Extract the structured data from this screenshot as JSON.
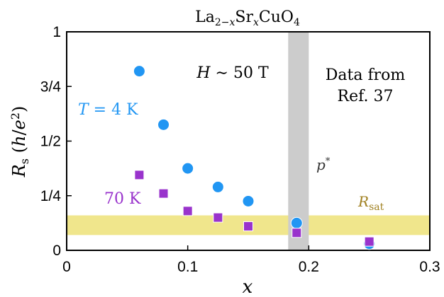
{
  "chart_data": {
    "type": "scatter",
    "title": "La2−xSrxCuO4",
    "xlabel": "x",
    "ylabel": "Rs (h/e2)",
    "xlim": [
      0,
      0.3
    ],
    "ylim": [
      0,
      1
    ],
    "x_ticks": [
      {
        "value": 0,
        "label": "0"
      },
      {
        "value": 0.1,
        "label": "0.1"
      },
      {
        "value": 0.2,
        "label": "0.2"
      },
      {
        "value": 0.3,
        "label": "0.3"
      }
    ],
    "y_ticks": [
      {
        "value": 0,
        "label": "0"
      },
      {
        "value": 0.25,
        "label": "1/4"
      },
      {
        "value": 0.5,
        "label": "1/2"
      },
      {
        "value": 0.75,
        "label": "3/4"
      },
      {
        "value": 1,
        "label": "1"
      }
    ],
    "grid": false,
    "series": [
      {
        "name": "T = 4 K",
        "marker": "circle",
        "color": "#2196F3",
        "points": [
          {
            "x": 0.06,
            "y": 0.82
          },
          {
            "x": 0.08,
            "y": 0.575
          },
          {
            "x": 0.1,
            "y": 0.375
          },
          {
            "x": 0.125,
            "y": 0.29
          },
          {
            "x": 0.15,
            "y": 0.225
          },
          {
            "x": 0.19,
            "y": 0.125
          },
          {
            "x": 0.25,
            "y": 0.03
          }
        ]
      },
      {
        "name": "70 K",
        "marker": "square",
        "color": "#9933CC",
        "points": [
          {
            "x": 0.06,
            "y": 0.345
          },
          {
            "x": 0.08,
            "y": 0.26
          },
          {
            "x": 0.1,
            "y": 0.18
          },
          {
            "x": 0.125,
            "y": 0.15
          },
          {
            "x": 0.15,
            "y": 0.11
          },
          {
            "x": 0.19,
            "y": 0.08
          },
          {
            "x": 0.25,
            "y": 0.04
          }
        ]
      }
    ],
    "bands": {
      "p_star": {
        "x_range": [
          0.183,
          0.2
        ],
        "label": "p*",
        "color": "#cccccc"
      },
      "r_sat": {
        "y_range": [
          0.07,
          0.16
        ],
        "label": "Rsat",
        "color": "#f0e68c",
        "label_color": "#a08020"
      }
    },
    "annotations": {
      "field": "H ∼ 50 T",
      "source_line1": "Data from",
      "source_line2": "Ref. 37"
    }
  }
}
